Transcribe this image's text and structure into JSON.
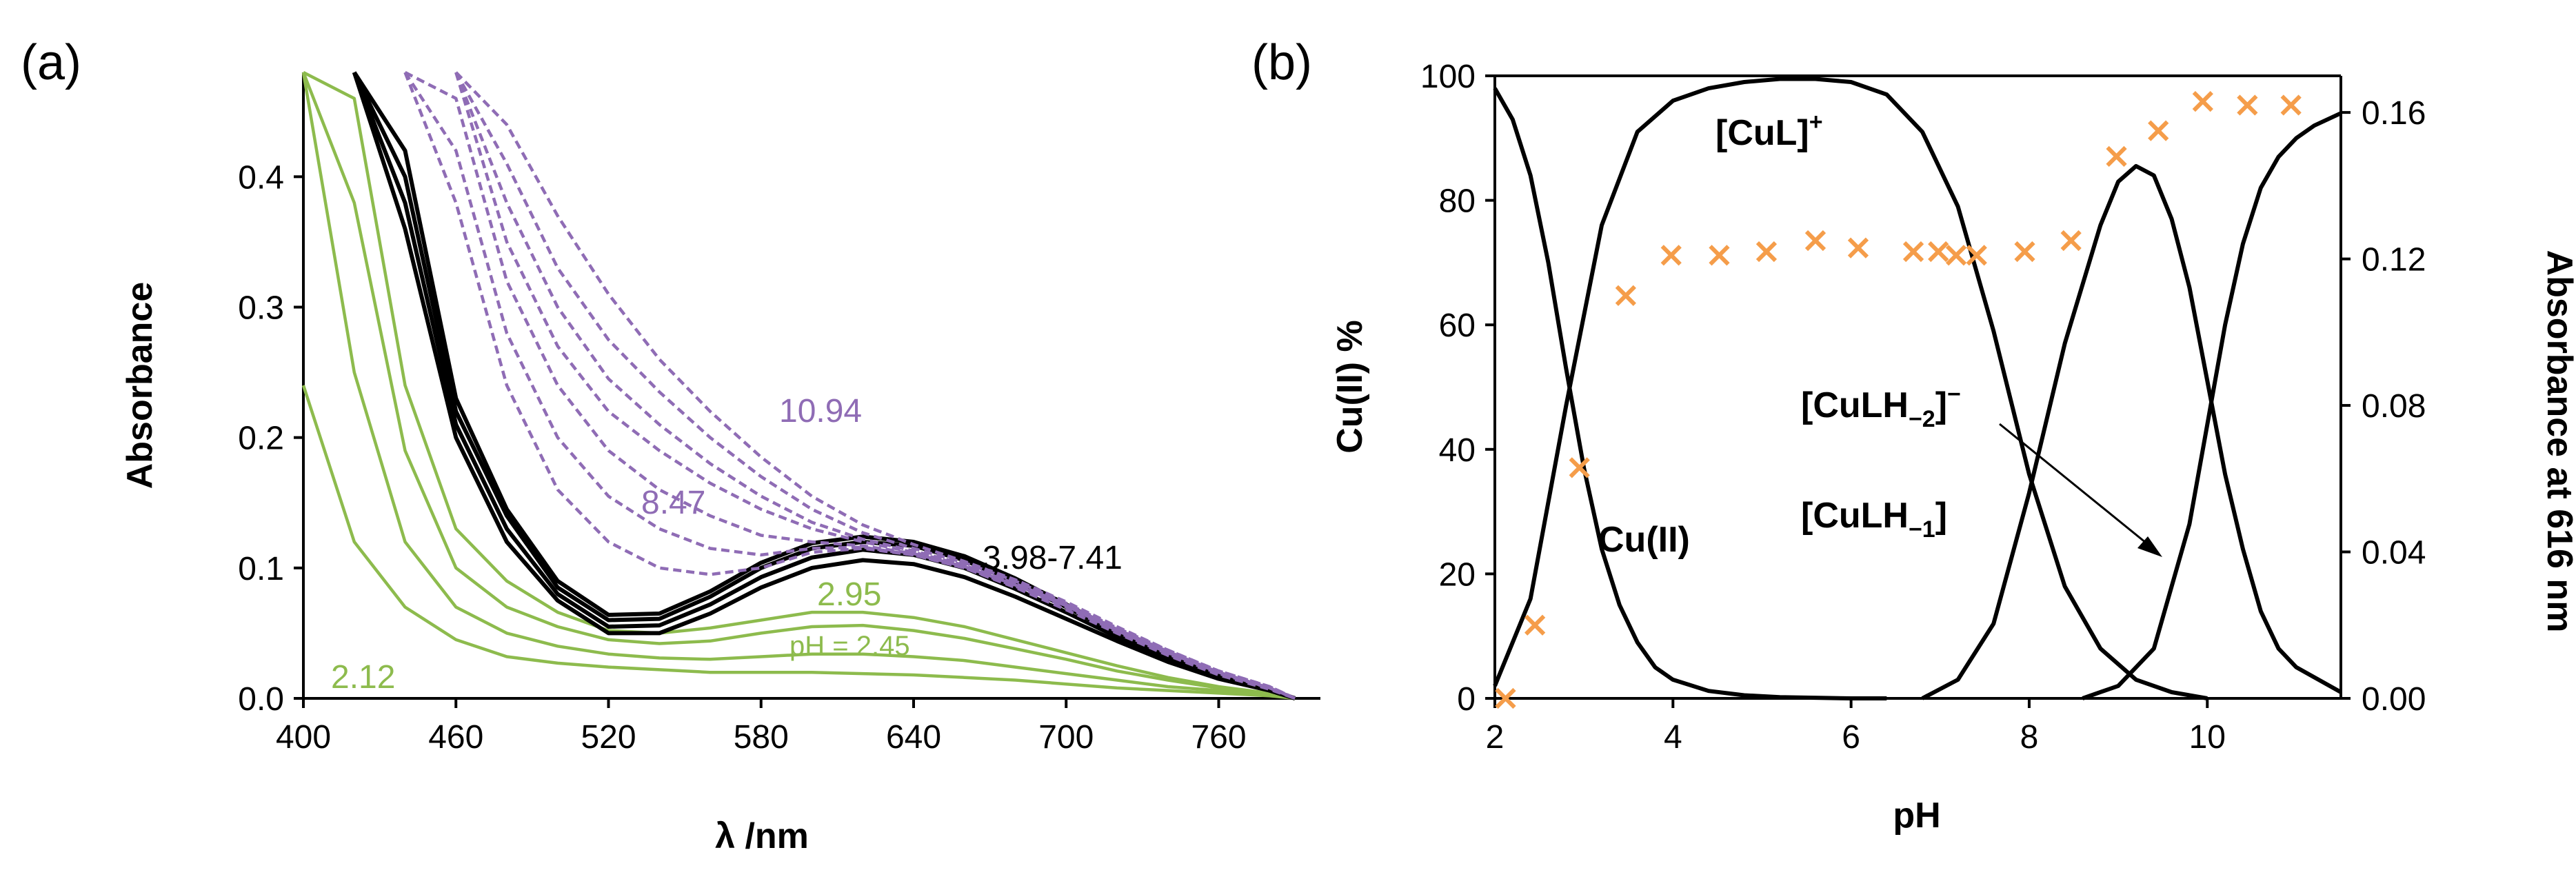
{
  "colors": {
    "green": "#8dbb4d",
    "black": "#000000",
    "purple": "#8f6cb5",
    "orange": "#f59d4a"
  },
  "panel_a": {
    "label": "(a)"
  },
  "panel_b": {
    "label": "(b)"
  },
  "chart_data": [
    {
      "type": "line",
      "xlabel": "λ /nm",
      "ylabel": "Absorbance",
      "xlim": [
        400,
        800
      ],
      "ylim": [
        0,
        0.48
      ],
      "xticks": [
        400,
        460,
        520,
        580,
        640,
        700,
        760
      ],
      "yticks": [
        0.0,
        0.1,
        0.2,
        0.3,
        0.4
      ],
      "grid": false,
      "annotations": [
        "10.94",
        "8.47",
        "3.98-7.41",
        "2.95",
        "pH = 2.45",
        "2.12"
      ],
      "x": [
        400,
        420,
        440,
        460,
        480,
        500,
        520,
        540,
        560,
        580,
        600,
        620,
        640,
        660,
        680,
        700,
        720,
        740,
        760,
        780,
        790
      ],
      "series": [
        {
          "group": "green",
          "values": [
            0.24,
            0.12,
            0.07,
            0.045,
            0.032,
            0.027,
            0.024,
            0.022,
            0.02,
            0.02,
            0.02,
            0.019,
            0.018,
            0.016,
            0.014,
            0.011,
            0.008,
            0.006,
            0.004,
            0.002,
            0.0
          ]
        },
        {
          "group": "green",
          "values": [
            0.48,
            0.25,
            0.12,
            0.07,
            0.05,
            0.04,
            0.034,
            0.031,
            0.03,
            0.032,
            0.034,
            0.034,
            0.032,
            0.029,
            0.024,
            0.019,
            0.014,
            0.009,
            0.006,
            0.003,
            0.0
          ]
        },
        {
          "group": "green",
          "values": [
            0.48,
            0.38,
            0.19,
            0.1,
            0.07,
            0.055,
            0.045,
            0.042,
            0.044,
            0.05,
            0.055,
            0.056,
            0.052,
            0.046,
            0.038,
            0.03,
            0.021,
            0.014,
            0.008,
            0.004,
            0.0
          ]
        },
        {
          "group": "green",
          "values": [
            0.48,
            0.46,
            0.24,
            0.13,
            0.09,
            0.066,
            0.052,
            0.05,
            0.054,
            0.06,
            0.066,
            0.066,
            0.062,
            0.055,
            0.045,
            0.035,
            0.025,
            0.016,
            0.009,
            0.004,
            0.0
          ]
        },
        {
          "group": "black",
          "values": [
            null,
            0.48,
            0.36,
            0.2,
            0.12,
            0.075,
            0.05,
            0.05,
            0.065,
            0.085,
            0.1,
            0.106,
            0.103,
            0.093,
            0.078,
            0.061,
            0.044,
            0.028,
            0.015,
            0.006,
            0.0
          ]
        },
        {
          "group": "black",
          "values": [
            null,
            0.48,
            0.38,
            0.21,
            0.13,
            0.08,
            0.055,
            0.056,
            0.072,
            0.093,
            0.108,
            0.114,
            0.11,
            0.1,
            0.084,
            0.066,
            0.047,
            0.03,
            0.016,
            0.006,
            0.0
          ]
        },
        {
          "group": "black",
          "values": [
            null,
            0.48,
            0.4,
            0.22,
            0.14,
            0.085,
            0.06,
            0.061,
            0.078,
            0.1,
            0.115,
            0.12,
            0.117,
            0.106,
            0.089,
            0.07,
            0.05,
            0.032,
            0.017,
            0.007,
            0.0
          ]
        },
        {
          "group": "black",
          "values": [
            null,
            0.48,
            0.42,
            0.23,
            0.145,
            0.09,
            0.064,
            0.065,
            0.082,
            0.104,
            0.119,
            0.124,
            0.12,
            0.109,
            0.092,
            0.072,
            0.052,
            0.033,
            0.018,
            0.007,
            0.0
          ]
        },
        {
          "group": "purple",
          "values": [
            null,
            null,
            0.48,
            0.38,
            0.24,
            0.16,
            0.12,
            0.1,
            0.095,
            0.1,
            0.112,
            0.115,
            0.11,
            0.1,
            0.085,
            0.068,
            0.05,
            0.033,
            0.018,
            0.007,
            0.0
          ]
        },
        {
          "group": "purple",
          "values": [
            null,
            null,
            0.48,
            0.42,
            0.28,
            0.2,
            0.155,
            0.13,
            0.115,
            0.11,
            0.115,
            0.116,
            0.11,
            0.1,
            0.086,
            0.07,
            0.051,
            0.034,
            0.019,
            0.008,
            0.0
          ]
        },
        {
          "group": "purple",
          "values": [
            null,
            null,
            0.48,
            0.46,
            0.32,
            0.24,
            0.19,
            0.16,
            0.14,
            0.125,
            0.12,
            0.117,
            0.111,
            0.101,
            0.087,
            0.071,
            0.052,
            0.035,
            0.02,
            0.008,
            0.0
          ]
        },
        {
          "group": "purple",
          "values": [
            null,
            null,
            null,
            0.48,
            0.35,
            0.27,
            0.22,
            0.19,
            0.165,
            0.145,
            0.13,
            0.12,
            0.112,
            0.102,
            0.088,
            0.072,
            0.053,
            0.036,
            0.02,
            0.008,
            0.0
          ]
        },
        {
          "group": "purple",
          "values": [
            null,
            null,
            null,
            0.48,
            0.38,
            0.3,
            0.245,
            0.21,
            0.18,
            0.155,
            0.135,
            0.122,
            0.113,
            0.103,
            0.089,
            0.072,
            0.054,
            0.036,
            0.021,
            0.009,
            0.0
          ]
        },
        {
          "group": "purple",
          "values": [
            null,
            null,
            null,
            0.48,
            0.41,
            0.33,
            0.275,
            0.235,
            0.2,
            0.17,
            0.145,
            0.127,
            0.115,
            0.104,
            0.09,
            0.073,
            0.054,
            0.037,
            0.021,
            0.009,
            0.0
          ]
        },
        {
          "group": "purple",
          "values": [
            null,
            null,
            null,
            0.48,
            0.44,
            0.37,
            0.31,
            0.26,
            0.22,
            0.185,
            0.155,
            0.133,
            0.118,
            0.105,
            0.091,
            0.074,
            0.055,
            0.037,
            0.021,
            0.009,
            0.0
          ]
        }
      ]
    },
    {
      "type": "line+scatter",
      "xlabel": "pH",
      "ylabel": "Cu(II) %",
      "y2label": "Absorbance at 616 nm",
      "xlim": [
        2,
        11.5
      ],
      "ylim": [
        0,
        100
      ],
      "y2lim": [
        0,
        0.17
      ],
      "xticks": [
        2,
        4,
        6,
        8,
        10
      ],
      "yticks": [
        0,
        20,
        40,
        60,
        80,
        100
      ],
      "y2ticks": [
        "0.00",
        "0.04",
        "0.08",
        "0.12",
        "0.16"
      ],
      "species_labels": [
        "Cu(II)",
        "[CuL]",
        "[CuLH",
        "[CuLH"
      ],
      "species_label_sup": [
        "+",
        "−"
      ],
      "species_label_sub": [
        "−2",
        "−1"
      ],
      "species_label_close": [
        "]",
        "]"
      ],
      "species": [
        {
          "name": "Cu(II)",
          "x": [
            2.0,
            2.2,
            2.4,
            2.6,
            2.8,
            3.0,
            3.2,
            3.4,
            3.6,
            3.8,
            4.0,
            4.4,
            4.8,
            5.2,
            5.6,
            6.0,
            6.4
          ],
          "values": [
            98,
            93,
            84,
            70,
            53,
            37,
            24,
            15,
            9,
            5,
            3,
            1.2,
            0.5,
            0.2,
            0.1,
            0,
            0
          ]
        },
        {
          "name": "[CuL]+",
          "x": [
            2.0,
            2.4,
            2.8,
            3.2,
            3.6,
            4.0,
            4.4,
            4.8,
            5.2,
            5.6,
            6.0,
            6.4,
            6.8,
            7.2,
            7.6,
            8.0,
            8.4,
            8.8,
            9.2,
            9.6,
            10.0
          ],
          "values": [
            2,
            16,
            47,
            76,
            91,
            96,
            98,
            99,
            99.5,
            99.5,
            99,
            97,
            91,
            79,
            59,
            36,
            18,
            8,
            3,
            1,
            0
          ]
        },
        {
          "name": "[CuLH-1]",
          "x": [
            6.8,
            7.2,
            7.6,
            8.0,
            8.4,
            8.8,
            9.0,
            9.2,
            9.4,
            9.6,
            9.8,
            10.0,
            10.2,
            10.4,
            10.6,
            10.8,
            11.0,
            11.5
          ],
          "values": [
            0,
            3,
            12,
            33,
            57,
            76,
            83,
            85.5,
            84,
            77,
            66,
            51,
            36,
            24,
            14,
            8,
            5,
            1
          ]
        },
        {
          "name": "[CuLH-2]-",
          "x": [
            8.6,
            9.0,
            9.4,
            9.8,
            10.0,
            10.2,
            10.4,
            10.6,
            10.8,
            11.0,
            11.2,
            11.5
          ],
          "values": [
            0,
            2,
            8,
            28,
            44,
            60,
            73,
            82,
            87,
            90,
            92,
            94
          ]
        }
      ],
      "absorbance_616nm": {
        "pH": [
          2.12,
          2.45,
          2.95,
          3.47,
          3.98,
          4.52,
          5.05,
          5.6,
          6.08,
          6.7,
          6.98,
          7.18,
          7.41,
          7.95,
          8.47,
          8.98,
          9.45,
          9.95,
          10.45,
          10.94
        ],
        "values": [
          0.0,
          0.02,
          0.063,
          0.11,
          0.121,
          0.121,
          0.122,
          0.125,
          0.123,
          0.122,
          0.122,
          0.121,
          0.121,
          0.122,
          0.125,
          0.148,
          0.155,
          0.163,
          0.162,
          0.162
        ]
      }
    }
  ]
}
